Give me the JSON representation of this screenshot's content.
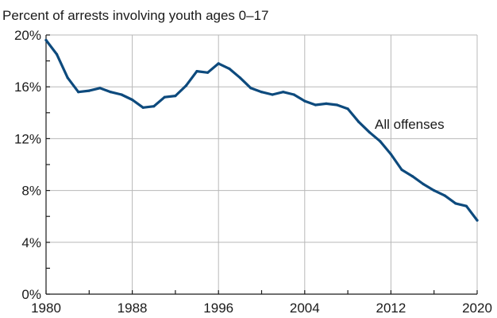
{
  "chart_data": {
    "type": "line",
    "title": "Percent of arrests involving youth ages 0–17",
    "xlabel": "",
    "ylabel": "",
    "xlim": [
      1980,
      2020
    ],
    "ylim": [
      0,
      20
    ],
    "x_ticks": [
      1980,
      1988,
      1996,
      2004,
      2012,
      2020
    ],
    "x_tick_labels": [
      "1980",
      "1988",
      "1996",
      "2004",
      "2012",
      "2020"
    ],
    "y_ticks": [
      0,
      4,
      8,
      12,
      16,
      20
    ],
    "y_tick_labels": [
      "0%",
      "4%",
      "8%",
      "12%",
      "16%",
      "20%"
    ],
    "grid": true,
    "colors": {
      "line": "#0d4a7d"
    },
    "series": [
      {
        "name": "All offenses",
        "x": [
          1980,
          1981,
          1982,
          1983,
          1984,
          1985,
          1986,
          1987,
          1988,
          1989,
          1990,
          1991,
          1992,
          1993,
          1994,
          1995,
          1996,
          1997,
          1998,
          1999,
          2000,
          2001,
          2002,
          2003,
          2004,
          2005,
          2006,
          2007,
          2008,
          2009,
          2010,
          2011,
          2012,
          2013,
          2014,
          2015,
          2016,
          2017,
          2018,
          2019,
          2020
        ],
        "values": [
          19.6,
          18.5,
          16.7,
          15.6,
          15.7,
          15.9,
          15.6,
          15.4,
          15.0,
          14.4,
          14.5,
          15.2,
          15.3,
          16.1,
          17.2,
          17.1,
          17.8,
          17.4,
          16.7,
          15.9,
          15.6,
          15.4,
          15.6,
          15.4,
          14.9,
          14.6,
          14.7,
          14.6,
          14.3,
          13.3,
          12.5,
          11.8,
          10.8,
          9.6,
          9.1,
          8.5,
          8.0,
          7.6,
          7.0,
          6.8,
          5.7
        ]
      }
    ]
  }
}
